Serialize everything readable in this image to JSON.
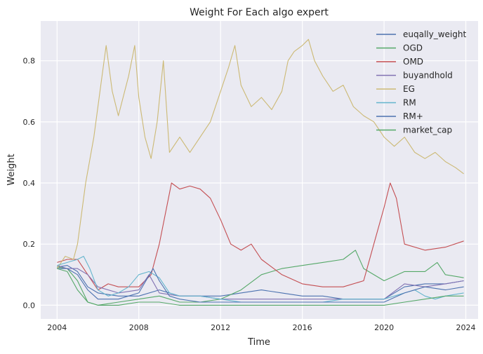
{
  "chart_data": {
    "type": "line",
    "title": "Weight For Each algo expert",
    "xlabel": "Time",
    "ylabel": "Weight",
    "xlim": [
      2003.2,
      2024.6
    ],
    "ylim": [
      -0.045,
      0.93
    ],
    "x_ticks": [
      2004,
      2008,
      2012,
      2016,
      2020,
      2024
    ],
    "y_ticks": [
      0.0,
      0.2,
      0.4,
      0.6,
      0.8
    ],
    "y_tick_labels": [
      "0.0",
      "0.2",
      "0.4",
      "0.6",
      "0.8"
    ],
    "grid": true,
    "legend_position": "top-right",
    "series": [
      {
        "name": "euqally_weight",
        "color": "#4c72b0",
        "x": [
          2004.0,
          2004.5,
          2005.0,
          2005.5,
          2006.0,
          2007.0,
          2008.0,
          2009.0,
          2010.0,
          2011.0,
          2012.0,
          2013.0,
          2014.0,
          2015.0,
          2016.0,
          2017.0,
          2018.0,
          2019.0,
          2020.0,
          2021.0,
          2022.0,
          2023.0,
          2023.9
        ],
        "y": [
          0.125,
          0.13,
          0.11,
          0.06,
          0.04,
          0.03,
          0.03,
          0.05,
          0.03,
          0.03,
          0.03,
          0.04,
          0.05,
          0.04,
          0.03,
          0.03,
          0.02,
          0.02,
          0.02,
          0.06,
          0.07,
          0.07,
          0.08
        ]
      },
      {
        "name": "OGD",
        "color": "#55a868",
        "x": [
          2004.0,
          2004.5,
          2005.0,
          2005.5,
          2006.0,
          2007.0,
          2008.0,
          2009.0,
          2010.0,
          2011.0,
          2012.0,
          2013.0,
          2014.0,
          2015.0,
          2016.0,
          2017.0,
          2018.0,
          2018.6,
          2019.0,
          2020.0,
          2021.0,
          2022.0,
          2022.6,
          2023.0,
          2023.9
        ],
        "y": [
          0.125,
          0.12,
          0.08,
          0.01,
          0.0,
          0.01,
          0.02,
          0.03,
          0.01,
          0.01,
          0.02,
          0.05,
          0.1,
          0.12,
          0.13,
          0.14,
          0.15,
          0.18,
          0.12,
          0.08,
          0.11,
          0.11,
          0.14,
          0.1,
          0.09
        ]
      },
      {
        "name": "OMD",
        "color": "#c44e52",
        "x": [
          2004.0,
          2004.5,
          2005.0,
          2005.5,
          2006.0,
          2006.5,
          2007.0,
          2008.0,
          2008.6,
          2009.0,
          2009.3,
          2009.6,
          2010.0,
          2010.5,
          2011.0,
          2011.5,
          2012.0,
          2012.5,
          2013.0,
          2013.5,
          2014.0,
          2015.0,
          2016.0,
          2017.0,
          2018.0,
          2019.0,
          2019.5,
          2020.0,
          2020.3,
          2020.6,
          2021.0,
          2022.0,
          2023.0,
          2023.9
        ],
        "y": [
          0.14,
          0.15,
          0.15,
          0.1,
          0.05,
          0.07,
          0.06,
          0.06,
          0.1,
          0.2,
          0.3,
          0.4,
          0.38,
          0.39,
          0.38,
          0.35,
          0.28,
          0.2,
          0.18,
          0.2,
          0.15,
          0.1,
          0.07,
          0.06,
          0.06,
          0.08,
          0.2,
          0.32,
          0.4,
          0.35,
          0.2,
          0.18,
          0.19,
          0.21
        ]
      },
      {
        "name": "buyandhold",
        "color": "#8172b2",
        "x": [
          2004.0,
          2004.5,
          2005.0,
          2005.5,
          2006.0,
          2007.0,
          2008.0,
          2008.5,
          2009.0,
          2010.0,
          2011.0,
          2012.0,
          2013.0,
          2014.0,
          2015.0,
          2016.0,
          2017.0,
          2018.0,
          2019.0,
          2020.0,
          2021.0,
          2022.0,
          2023.0,
          2023.9
        ],
        "y": [
          0.13,
          0.12,
          0.12,
          0.1,
          0.06,
          0.04,
          0.05,
          0.1,
          0.04,
          0.03,
          0.03,
          0.02,
          0.02,
          0.02,
          0.02,
          0.02,
          0.02,
          0.02,
          0.02,
          0.02,
          0.07,
          0.06,
          0.07,
          0.08
        ]
      },
      {
        "name": "EG",
        "color": "#ccb974",
        "x": [
          2004.0,
          2004.4,
          2004.8,
          2005.0,
          2005.4,
          2005.8,
          2006.1,
          2006.4,
          2006.7,
          2007.0,
          2007.5,
          2007.8,
          2008.0,
          2008.3,
          2008.6,
          2008.9,
          2009.2,
          2009.5,
          2010.0,
          2010.5,
          2011.0,
          2011.5,
          2012.0,
          2012.4,
          2012.7,
          2013.0,
          2013.5,
          2014.0,
          2014.5,
          2015.0,
          2015.3,
          2015.6,
          2016.0,
          2016.3,
          2016.6,
          2017.0,
          2017.5,
          2018.0,
          2018.5,
          2019.0,
          2019.5,
          2020.0,
          2020.5,
          2021.0,
          2021.5,
          2022.0,
          2022.5,
          2023.0,
          2023.5,
          2023.9
        ],
        "y": [
          0.12,
          0.16,
          0.15,
          0.2,
          0.4,
          0.55,
          0.7,
          0.85,
          0.7,
          0.62,
          0.75,
          0.85,
          0.68,
          0.55,
          0.48,
          0.6,
          0.8,
          0.5,
          0.55,
          0.5,
          0.55,
          0.6,
          0.7,
          0.78,
          0.85,
          0.72,
          0.65,
          0.68,
          0.64,
          0.7,
          0.8,
          0.83,
          0.85,
          0.87,
          0.8,
          0.75,
          0.7,
          0.72,
          0.65,
          0.62,
          0.6,
          0.55,
          0.52,
          0.55,
          0.5,
          0.48,
          0.5,
          0.47,
          0.45,
          0.43
        ]
      },
      {
        "name": "RM",
        "color": "#64b5cd",
        "x": [
          2004.0,
          2004.5,
          2005.0,
          2005.3,
          2005.6,
          2006.0,
          2006.5,
          2007.0,
          2007.5,
          2008.0,
          2008.5,
          2009.0,
          2009.5,
          2010.0,
          2011.0,
          2012.0,
          2013.0,
          2014.0,
          2015.0,
          2016.0,
          2017.0,
          2018.0,
          2019.0,
          2020.0,
          2021.0,
          2021.5,
          2022.0,
          2022.5,
          2023.0,
          2023.9
        ],
        "y": [
          0.13,
          0.14,
          0.15,
          0.16,
          0.12,
          0.05,
          0.03,
          0.04,
          0.06,
          0.1,
          0.11,
          0.09,
          0.04,
          0.03,
          0.03,
          0.02,
          0.01,
          0.01,
          0.01,
          0.01,
          0.01,
          0.02,
          0.02,
          0.02,
          0.04,
          0.05,
          0.03,
          0.02,
          0.03,
          0.04
        ]
      },
      {
        "name": "RM+",
        "color": "#4c72b0",
        "x": [
          2004.0,
          2004.5,
          2005.0,
          2005.5,
          2006.0,
          2007.0,
          2008.0,
          2008.7,
          2009.0,
          2009.5,
          2010.0,
          2011.0,
          2012.0,
          2013.0,
          2014.0,
          2015.0,
          2016.0,
          2017.0,
          2018.0,
          2019.0,
          2020.0,
          2021.0,
          2022.0,
          2023.0,
          2023.9
        ],
        "y": [
          0.12,
          0.12,
          0.1,
          0.05,
          0.02,
          0.02,
          0.04,
          0.12,
          0.08,
          0.03,
          0.02,
          0.01,
          0.01,
          0.01,
          0.01,
          0.01,
          0.01,
          0.01,
          0.01,
          0.01,
          0.01,
          0.04,
          0.06,
          0.05,
          0.06
        ]
      },
      {
        "name": "market_cap",
        "color": "#55a868",
        "x": [
          2004.0,
          2004.5,
          2005.0,
          2005.5,
          2006.0,
          2007.0,
          2008.0,
          2009.0,
          2010.0,
          2011.0,
          2012.0,
          2013.0,
          2014.0,
          2015.0,
          2016.0,
          2017.0,
          2018.0,
          2019.0,
          2020.0,
          2021.0,
          2022.0,
          2023.0,
          2023.9
        ],
        "y": [
          0.12,
          0.11,
          0.05,
          0.01,
          0.0,
          0.0,
          0.01,
          0.01,
          0.0,
          0.0,
          0.0,
          0.0,
          0.0,
          0.0,
          0.0,
          0.0,
          0.0,
          0.0,
          0.0,
          0.01,
          0.02,
          0.03,
          0.03
        ]
      }
    ]
  }
}
